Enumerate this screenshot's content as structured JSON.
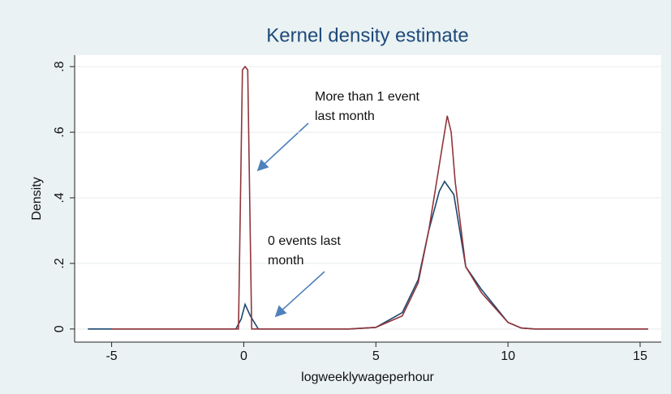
{
  "chart_data": {
    "type": "line",
    "title": "Kernel density estimate",
    "xlabel": "logweeklywageperhour",
    "ylabel": "Density",
    "xlim": [
      -6.4,
      15.8
    ],
    "ylim": [
      -0.04,
      0.835
    ],
    "xticks": [
      -5,
      0,
      5,
      10,
      15
    ],
    "yticks": [
      0,
      {
        "value": 0.2,
        "label": ".2"
      },
      {
        "value": 0.4,
        "label": ".4"
      },
      {
        "value": 0.6,
        "label": ".6"
      },
      {
        "value": 0.8,
        "label": ".8"
      }
    ],
    "grid": true,
    "series": [
      {
        "name": "0 events last month",
        "color": "#1a476f",
        "x": [
          -5.9,
          -0.3,
          -0.1,
          0.05,
          0.25,
          0.55,
          4,
          5,
          6,
          6.6,
          7,
          7.4,
          7.6,
          7.95,
          8.4,
          9,
          10,
          10.5,
          11,
          15.3
        ],
        "values": [
          0,
          0,
          0.03,
          0.075,
          0.04,
          0,
          0,
          0.005,
          0.05,
          0.15,
          0.3,
          0.42,
          0.45,
          0.41,
          0.19,
          0.12,
          0.02,
          0.003,
          0,
          0
        ]
      },
      {
        "name": "More than 1 event last month",
        "color": "#90353b",
        "x": [
          -5,
          -0.2,
          -0.05,
          0.05,
          0.15,
          0.3,
          4,
          5,
          6,
          6.6,
          7,
          7.4,
          7.7,
          7.85,
          8,
          8.4,
          9,
          10,
          10.5,
          11,
          15.3
        ],
        "values": [
          0,
          0,
          0.79,
          0.8,
          0.79,
          0,
          0,
          0.005,
          0.04,
          0.14,
          0.3,
          0.5,
          0.65,
          0.6,
          0.45,
          0.19,
          0.11,
          0.02,
          0.003,
          0,
          0
        ]
      }
    ],
    "annotations": [
      {
        "text": [
          "More than 1 event",
          "last month"
        ]
      },
      {
        "text": [
          "0 events last",
          "month"
        ]
      }
    ]
  }
}
